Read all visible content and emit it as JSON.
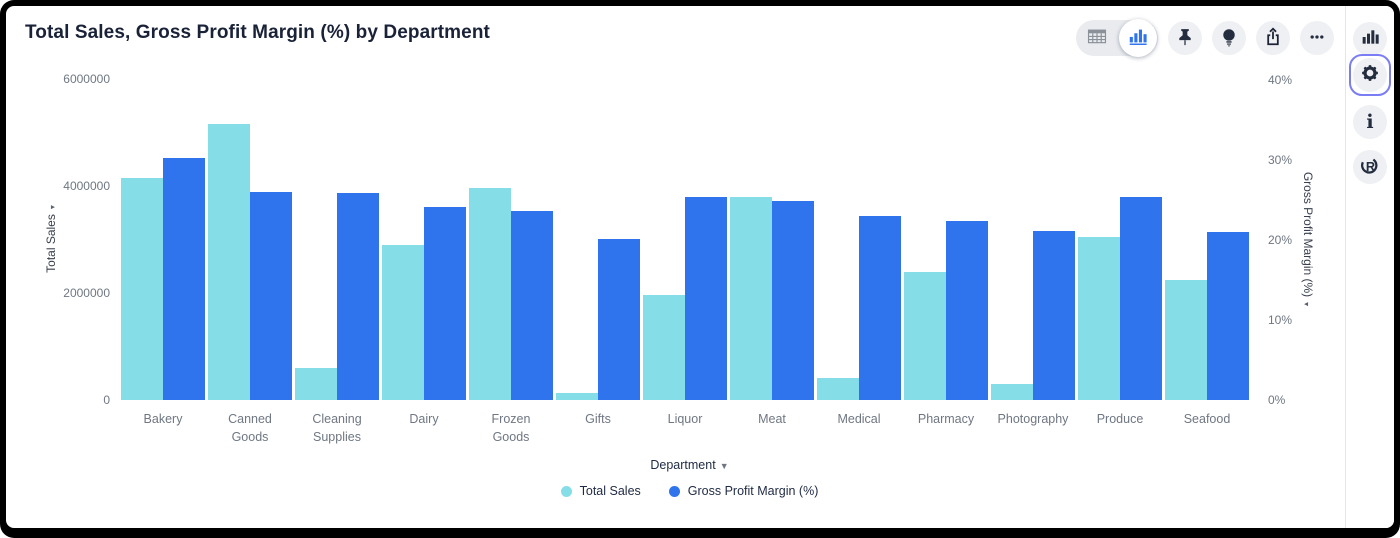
{
  "header": {
    "title": "Total Sales, Gross Profit Margin (%) by Department"
  },
  "toolbar": {
    "view_toggle": {
      "options": [
        "table-view",
        "chart-view"
      ],
      "selected": "chart-view"
    },
    "buttons": [
      "pin",
      "explore",
      "export",
      "more"
    ]
  },
  "rail": {
    "items": [
      "chart-type",
      "settings",
      "info",
      "r-logo"
    ],
    "selected": "settings",
    "selected_outline_color": "#7B7DF4"
  },
  "chart_data": {
    "type": "bar",
    "dual_axis": true,
    "title": "Total Sales, Gross Profit Margin (%) by Department",
    "categories": [
      "Bakery",
      "Canned Goods",
      "Cleaning Supplies",
      "Dairy",
      "Frozen Goods",
      "Gifts",
      "Liquor",
      "Meat",
      "Medical",
      "Pharmacy",
      "Photography",
      "Produce",
      "Seafood"
    ],
    "category_labels": [
      "Bakery",
      "Canned\nGoods",
      "Cleaning\nSupplies",
      "Dairy",
      "Frozen\nGoods",
      "Gifts",
      "Liquor",
      "Meat",
      "Medical",
      "Pharmacy",
      "Photography",
      "Produce",
      "Seafood"
    ],
    "series": [
      {
        "name": "Total Sales",
        "axis": "left",
        "color": "#85DEE7",
        "values": [
          4150000,
          5150000,
          600000,
          2900000,
          3960000,
          130000,
          1960000,
          3790000,
          410000,
          2390000,
          300000,
          3050000,
          2240000
        ]
      },
      {
        "name": "Gross Profit Margin (%)",
        "axis": "right",
        "color": "#2F74ED",
        "values": [
          30.1,
          25.9,
          25.8,
          24.1,
          23.5,
          20.1,
          25.3,
          24.8,
          22.9,
          22.3,
          21.1,
          25.3,
          20.9
        ]
      }
    ],
    "left_axis": {
      "label": "Total Sales",
      "max": 6000000,
      "ticks": [
        0,
        2000000,
        4000000,
        6000000
      ],
      "tick_labels": [
        "0",
        "2000000",
        "4000000",
        "6000000"
      ]
    },
    "right_axis": {
      "label": "Gross Profit Margin (%)",
      "max": 40,
      "ticks": [
        0,
        10,
        20,
        30,
        40
      ],
      "tick_labels": [
        "0%",
        "10%",
        "20%",
        "30%",
        "40%"
      ]
    },
    "xlabel": "Department",
    "grid": false,
    "legend_position": "bottom",
    "legend": [
      "Total Sales",
      "Gross Profit Margin (%)"
    ]
  }
}
